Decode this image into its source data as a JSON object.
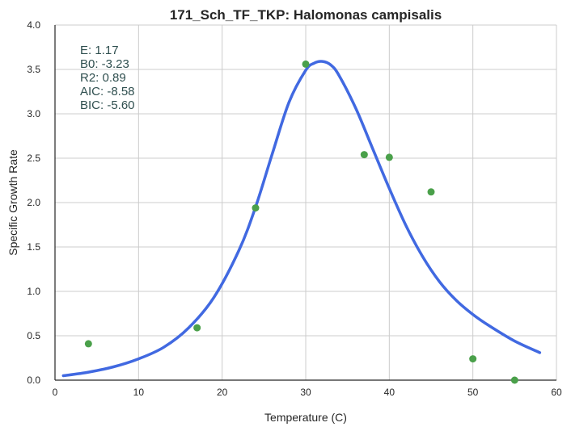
{
  "chart_data": {
    "type": "scatter",
    "title": "171_Sch_TF_TKP: Halomonas campisalis",
    "xlabel": "Temperature (C)",
    "ylabel": "Specific Growth Rate",
    "xlim": [
      0,
      60
    ],
    "ylim": [
      0,
      4.0
    ],
    "x_ticks": [
      "0",
      "10",
      "20",
      "30",
      "40",
      "50",
      "60"
    ],
    "y_ticks": [
      "0.0",
      "0.5",
      "1.0",
      "1.5",
      "2.0",
      "2.5",
      "3.0",
      "3.5",
      "4.0"
    ],
    "grid": true,
    "annotations": [
      "E:  1.17",
      "B0:  -3.23",
      "R2:  0.89",
      "AIC: -8.58",
      "BIC: -5.60"
    ],
    "colors": {
      "points": "#4aa04a",
      "fit": "#4169e1",
      "grid": "#cccccc",
      "annotation": "#2f4f4f"
    },
    "series": [
      {
        "kind": "points",
        "x": [
          4,
          17,
          24,
          30,
          37,
          40,
          45,
          50,
          55
        ],
        "y": [
          0.41,
          0.59,
          1.94,
          3.56,
          2.54,
          2.51,
          2.12,
          0.24,
          0.0
        ]
      },
      {
        "kind": "fit-line",
        "x": [
          1,
          4,
          7,
          10,
          13,
          16,
          19,
          22,
          24,
          26,
          28,
          30,
          31,
          32,
          33,
          34,
          36,
          38,
          40,
          42,
          44,
          46,
          48,
          50,
          52,
          55,
          58
        ],
        "y": [
          0.05,
          0.09,
          0.15,
          0.24,
          0.37,
          0.59,
          0.93,
          1.46,
          1.95,
          2.55,
          3.13,
          3.49,
          3.57,
          3.59,
          3.55,
          3.43,
          3.06,
          2.61,
          2.16,
          1.74,
          1.39,
          1.11,
          0.9,
          0.74,
          0.61,
          0.44,
          0.31
        ]
      }
    ]
  }
}
